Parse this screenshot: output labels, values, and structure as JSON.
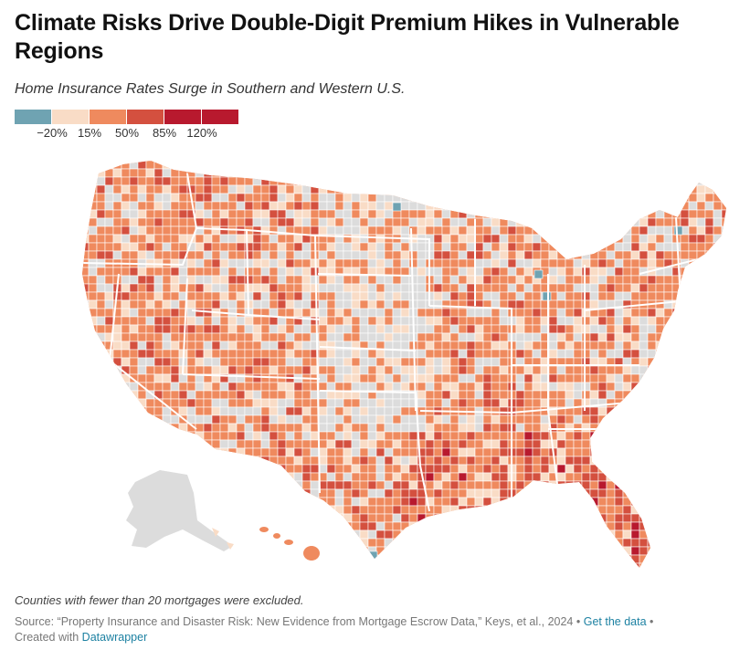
{
  "title": "Climate Risks Drive Double-Digit Premium Hikes in Vulnerable Regions",
  "subtitle": "Home Insurance Rates Surge in Southern and Western U.S.",
  "legend": {
    "colors": [
      "#6fa3b2",
      "#f9dcc6",
      "#ef8a5e",
      "#d4503f",
      "#b8192e",
      "#b8192e"
    ],
    "ticks": [
      "−20%",
      "15%",
      "50%",
      "85%",
      "120%"
    ]
  },
  "map": {
    "no_data_color": "#dcdcdc",
    "boundary_color": "#ffffff",
    "state_line_color": "#ffffff"
  },
  "note": "Counties with fewer than 20 mortgages were excluded.",
  "source": {
    "text": "Source: “Property Insurance and Disaster Risk: New Evidence from Mortgage Escrow Data,” Keys, et al., 2024",
    "separator": "•",
    "get_data_link": "Get the data",
    "created_with": "Created with",
    "datawrapper_link": "Datawrapper"
  }
}
